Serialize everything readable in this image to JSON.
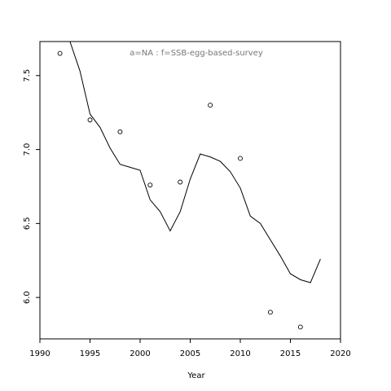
{
  "chart_data": {
    "type": "scatter",
    "annotation": "a=NA  :  f=SSB-egg-based-survey",
    "xlabel": "Year",
    "ylabel": "",
    "xlim": [
      1990,
      2020
    ],
    "ylim": [
      5.72,
      7.73
    ],
    "xticks": [
      1990,
      1995,
      2000,
      2005,
      2010,
      2015,
      2020
    ],
    "yticks": [
      6.0,
      6.5,
      7.0,
      7.5
    ],
    "ytick_labels": [
      "6.0",
      "6.5",
      "7.0",
      "7.5"
    ],
    "grid": false,
    "legend": "none",
    "series": [
      {
        "kind": "points",
        "x": [
          1992,
          1995,
          1998,
          2001,
          2004,
          2007,
          2010,
          2013,
          2016
        ],
        "y": [
          7.65,
          7.2,
          7.12,
          6.76,
          6.78,
          7.3,
          6.94,
          5.9,
          5.8
        ]
      },
      {
        "kind": "line",
        "x": [
          1993,
          1994,
          1995,
          1996,
          1997,
          1998,
          1999,
          2000,
          2001,
          2002,
          2003,
          2004,
          2005,
          2006,
          2007,
          2008,
          2009,
          2010,
          2011,
          2012,
          2013,
          2014,
          2015,
          2016,
          2017,
          2018
        ],
        "y": [
          7.73,
          7.53,
          7.24,
          7.15,
          7.01,
          6.9,
          6.88,
          6.86,
          6.66,
          6.58,
          6.45,
          6.58,
          6.8,
          6.97,
          6.95,
          6.92,
          6.85,
          6.74,
          6.55,
          6.5,
          6.39,
          6.28,
          6.16,
          6.12,
          6.1,
          6.26
        ]
      }
    ]
  }
}
